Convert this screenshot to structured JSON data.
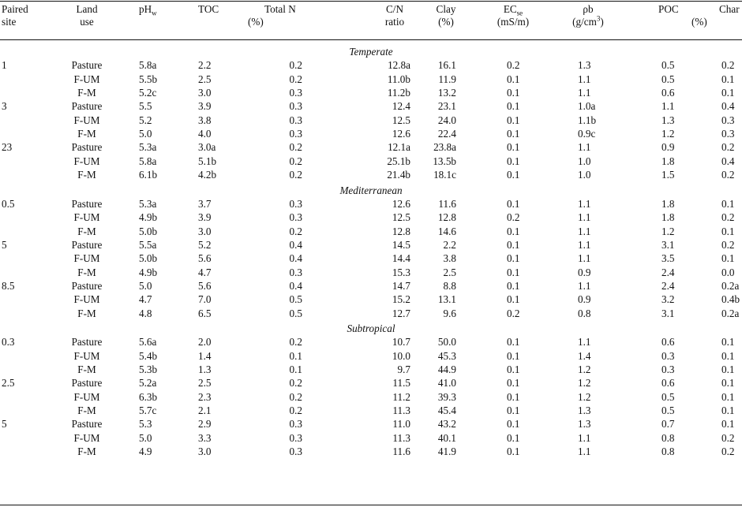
{
  "headers": [
    {
      "key": "site",
      "line1": "Paired",
      "line2": "site"
    },
    {
      "key": "land",
      "line1": "Land",
      "line2": "use"
    },
    {
      "key": "ph",
      "line1": "pH",
      "sub1": "w",
      "line2": ""
    },
    {
      "key": "toc",
      "line1": "TOC",
      "line2": ""
    },
    {
      "key": "tn",
      "line1": "Total N",
      "line2": ""
    },
    {
      "key": "pct1",
      "line1": "",
      "line2": "(%)"
    },
    {
      "key": "cn",
      "line1": "C/N",
      "line2": "ratio"
    },
    {
      "key": "clay",
      "line1": "Clay",
      "line2": "(%)"
    },
    {
      "key": "ec",
      "line1": "EC",
      "sub1": "se",
      "line2": "(mS/m)"
    },
    {
      "key": "rho",
      "line1": "ρb",
      "line2": "(g/cm",
      "sup2": "3",
      "line2end": ")"
    },
    {
      "key": "poc",
      "line1": "POC",
      "line2": ""
    },
    {
      "key": "pct2",
      "line1": "",
      "line2": "(%)"
    },
    {
      "key": "char",
      "line1": "Char",
      "line2": ""
    }
  ],
  "groups": [
    {
      "zone": "Temperate",
      "rows": [
        [
          "1",
          "Pasture",
          "5.8a",
          "2.2",
          "0.2",
          "12.8a",
          "16.1",
          "0.2",
          "1.3",
          "0.5",
          "0.2"
        ],
        [
          "",
          "F-UM",
          "5.5b",
          "2.5",
          "0.2",
          "11.0b",
          "11.9",
          "0.1",
          "1.1",
          "0.5",
          "0.1"
        ],
        [
          "",
          "F-M",
          "5.2c",
          "3.0",
          "0.3",
          "11.2b",
          "13.2",
          "0.1",
          "1.1",
          "0.6",
          "0.1"
        ],
        [
          "3",
          "Pasture",
          "5.5",
          "3.9",
          "0.3",
          "12.4",
          "23.1",
          "0.1",
          "1.0a",
          "1.1",
          "0.4"
        ],
        [
          "",
          "F-UM",
          "5.2",
          "3.8",
          "0.3",
          "12.5",
          "24.0",
          "0.1",
          "1.1b",
          "1.3",
          "0.3"
        ],
        [
          "",
          "F-M",
          "5.0",
          "4.0",
          "0.3",
          "12.6",
          "22.4",
          "0.1",
          "0.9c",
          "1.2",
          "0.3"
        ],
        [
          "23",
          "Pasture",
          "5.3a",
          "3.0a",
          "0.2",
          "12.1a",
          "23.8a",
          "0.1",
          "1.1",
          "0.9",
          "0.2"
        ],
        [
          "",
          "F-UM",
          "5.8a",
          "5.1b",
          "0.2",
          "25.1b",
          "13.5b",
          "0.1",
          "1.0",
          "1.8",
          "0.4"
        ],
        [
          "",
          "F-M",
          "6.1b",
          "4.2b",
          "0.2",
          "21.4b",
          "18.1c",
          "0.1",
          "1.0",
          "1.5",
          "0.2"
        ]
      ]
    },
    {
      "zone": "Mediterranean",
      "rows": [
        [
          "0.5",
          "Pasture",
          "5.3a",
          "3.7",
          "0.3",
          "12.6",
          "11.6",
          "0.1",
          "1.1",
          "1.8",
          "0.1"
        ],
        [
          "",
          "F-UM",
          "4.9b",
          "3.9",
          "0.3",
          "12.5",
          "12.8",
          "0.2",
          "1.1",
          "1.8",
          "0.2"
        ],
        [
          "",
          "F-M",
          "5.0b",
          "3.0",
          "0.2",
          "12.8",
          "14.6",
          "0.1",
          "1.1",
          "1.2",
          "0.1"
        ],
        [
          "5",
          "Pasture",
          "5.5a",
          "5.2",
          "0.4",
          "14.5",
          "2.2",
          "0.1",
          "1.1",
          "3.1",
          "0.2"
        ],
        [
          "",
          "F-UM",
          "5.0b",
          "5.6",
          "0.4",
          "14.4",
          "3.8",
          "0.1",
          "1.1",
          "3.5",
          "0.1"
        ],
        [
          "",
          "F-M",
          "4.9b",
          "4.7",
          "0.3",
          "15.3",
          "2.5",
          "0.1",
          "0.9",
          "2.4",
          "0.0"
        ],
        [
          "8.5",
          "Pasture",
          "5.0",
          "5.6",
          "0.4",
          "14.7",
          "8.8",
          "0.1",
          "1.1",
          "2.4",
          "0.2a"
        ],
        [
          "",
          "F-UM",
          "4.7",
          "7.0",
          "0.5",
          "15.2",
          "13.1",
          "0.1",
          "0.9",
          "3.2",
          "0.4b"
        ],
        [
          "",
          "F-M",
          "4.8",
          "6.5",
          "0.5",
          "12.7",
          "9.6",
          "0.2",
          "0.8",
          "3.1",
          "0.2a"
        ]
      ]
    },
    {
      "zone": "Subtropical",
      "rows": [
        [
          "0.3",
          "Pasture",
          "5.6a",
          "2.0",
          "0.2",
          "10.7",
          "50.0",
          "0.1",
          "1.1",
          "0.6",
          "0.1"
        ],
        [
          "",
          "F-UM",
          "5.4b",
          "1.4",
          "0.1",
          "10.0",
          "45.3",
          "0.1",
          "1.4",
          "0.3",
          "0.1"
        ],
        [
          "",
          "F-M",
          "5.3b",
          "1.3",
          "0.1",
          "9.7",
          "44.9",
          "0.1",
          "1.2",
          "0.3",
          "0.1"
        ],
        [
          "2.5",
          "Pasture",
          "5.2a",
          "2.5",
          "0.2",
          "11.5",
          "41.0",
          "0.1",
          "1.2",
          "0.6",
          "0.1"
        ],
        [
          "",
          "F-UM",
          "6.3b",
          "2.3",
          "0.2",
          "11.2",
          "39.3",
          "0.1",
          "1.2",
          "0.5",
          "0.1"
        ],
        [
          "",
          "F-M",
          "5.7c",
          "2.1",
          "0.2",
          "11.3",
          "45.4",
          "0.1",
          "1.3",
          "0.5",
          "0.1"
        ],
        [
          "5",
          "Pasture",
          "5.3",
          "2.9",
          "0.3",
          "11.0",
          "43.2",
          "0.1",
          "1.3",
          "0.7",
          "0.1"
        ],
        [
          "",
          "F-UM",
          "5.0",
          "3.3",
          "0.3",
          "11.3",
          "40.1",
          "0.1",
          "1.1",
          "0.8",
          "0.2"
        ],
        [
          "",
          "F-M",
          "4.9",
          "3.0",
          "0.3",
          "11.6",
          "41.9",
          "0.1",
          "1.1",
          "0.8",
          "0.2"
        ]
      ]
    }
  ]
}
